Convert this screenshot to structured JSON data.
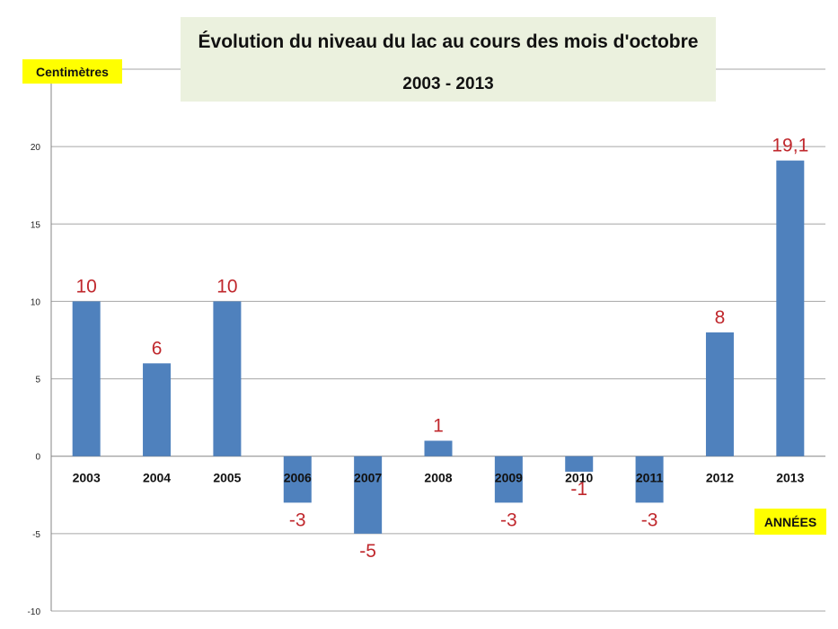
{
  "chart_data": {
    "type": "bar",
    "title": "Évolution du niveau du lac au cours des mois d'octobre",
    "subtitle": "2003 - 2013",
    "ylabel": "Centimètres",
    "xlabel": "ANNÉES",
    "categories": [
      "2003",
      "2004",
      "2005",
      "2006",
      "2007",
      "2008",
      "2009",
      "2010",
      "2011",
      "2012",
      "2013"
    ],
    "values": [
      10,
      6,
      10,
      -3,
      -5,
      1,
      -3,
      -1,
      -3,
      8,
      19.1
    ],
    "data_labels": [
      "10",
      "6",
      "10",
      "-3",
      "-5",
      "1",
      "-3",
      "-1",
      "-3",
      "8",
      "19,1"
    ],
    "ylim": [
      -10,
      25
    ],
    "yticks": [
      -10,
      -5,
      0,
      5,
      10,
      15,
      20
    ],
    "ytick_labels": [
      "-10",
      "-5",
      "0",
      "5",
      "10",
      "15",
      "20"
    ],
    "grid": true,
    "colors": {
      "bar": "#4f81bd",
      "data_label": "#c0282d",
      "grid": "#a6a6a6",
      "axis": "#868686"
    }
  }
}
